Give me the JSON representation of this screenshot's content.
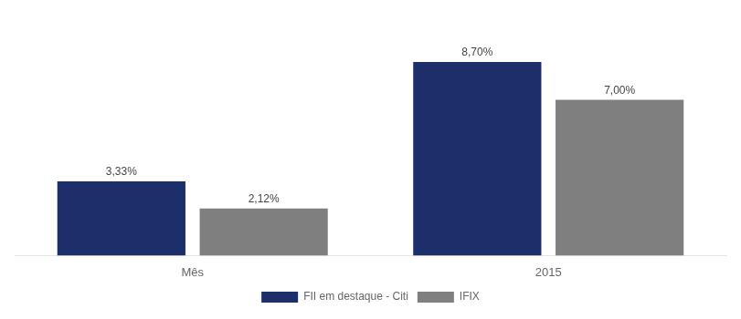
{
  "chart_data": {
    "type": "bar",
    "categories": [
      "Mês",
      "2015"
    ],
    "series": [
      {
        "name": "FII em destaque - Citi",
        "color": "#1c2f6b",
        "values": [
          3.33,
          8.7
        ],
        "value_labels": [
          "3,33%",
          "8,70%"
        ]
      },
      {
        "name": "IFIX",
        "color": "#7f7f7f",
        "values": [
          2.12,
          7.0
        ],
        "value_labels": [
          "2,12%",
          "7,00%"
        ]
      }
    ],
    "ylim": [
      0,
      10.5
    ],
    "grid": false,
    "legend": "bottom",
    "data_labels": true,
    "tick_labels": "x"
  }
}
